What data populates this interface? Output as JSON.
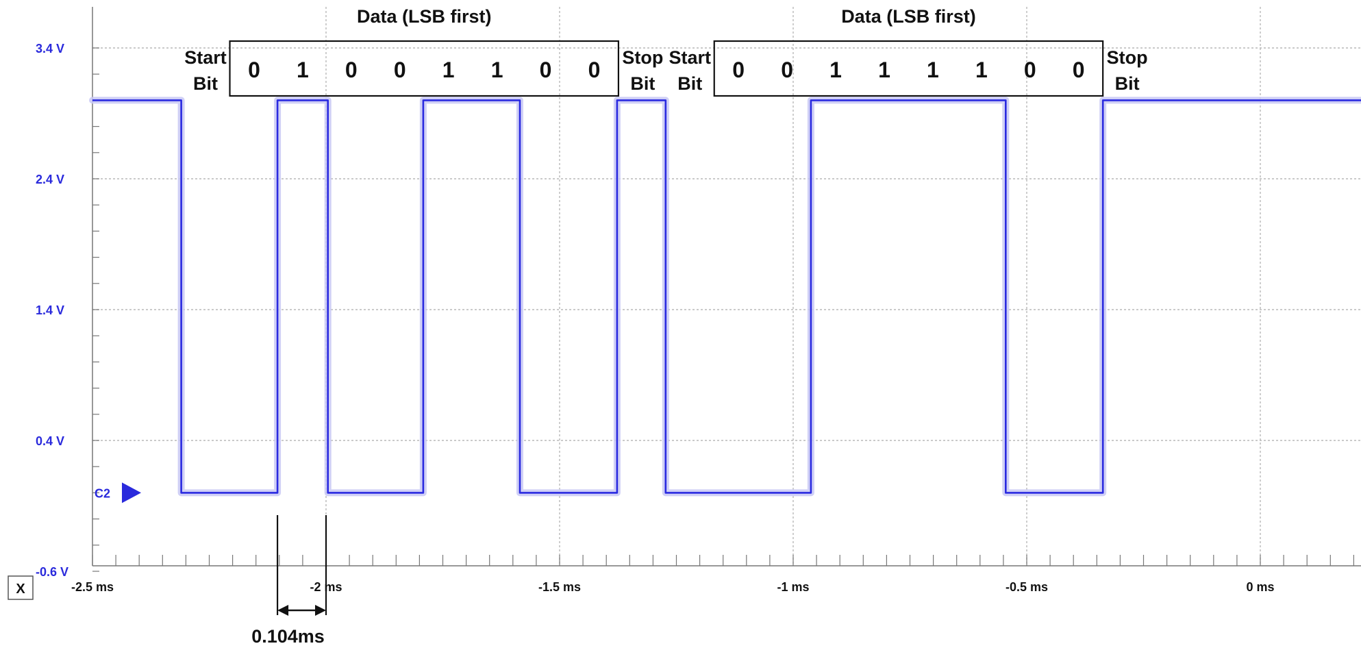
{
  "chart_data": {
    "type": "line",
    "title": "",
    "xlabel": "",
    "ylabel": "",
    "xlim": [
      -2.5,
      0.4
    ],
    "ylim": [
      -0.6,
      3.4
    ],
    "x_ticks": [
      {
        "value": -2.5,
        "label": "-2.5 ms"
      },
      {
        "value": -2.0,
        "label": "-2 ms"
      },
      {
        "value": -1.5,
        "label": "-1.5 ms"
      },
      {
        "value": -1.0,
        "label": "-1 ms"
      },
      {
        "value": -0.5,
        "label": "-0.5 ms"
      },
      {
        "value": 0.0,
        "label": "0 ms"
      }
    ],
    "y_ticks": [
      {
        "value": 3.4,
        "label": "3.4 V"
      },
      {
        "value": 2.4,
        "label": "2.4 V"
      },
      {
        "value": 1.4,
        "label": "1.4 V"
      },
      {
        "value": 0.4,
        "label": "0.4 V"
      },
      {
        "value": -0.6,
        "label": "-0.6 V"
      }
    ],
    "grid": true,
    "series": [
      {
        "name": "C2",
        "color": "#2a2ae0",
        "high": 3.0,
        "low": 0.0,
        "x": [
          -2.5,
          -2.31,
          -2.31,
          -2.104,
          -2.104,
          -1.996,
          -1.996,
          -1.792,
          -1.792,
          -1.585,
          -1.585,
          -1.377,
          -1.377,
          -1.273,
          -1.273,
          -0.962,
          -0.962,
          -0.545,
          -0.545,
          -0.337,
          -0.337,
          0.4
        ],
        "y": [
          3.0,
          3.0,
          0.0,
          0.0,
          3.0,
          3.0,
          0.0,
          0.0,
          3.0,
          3.0,
          0.0,
          0.0,
          3.0,
          3.0,
          0.0,
          0.0,
          3.0,
          3.0,
          0.0,
          0.0,
          3.0,
          3.0
        ]
      }
    ],
    "annotations": {
      "frames": [
        {
          "header": "Data (LSB first)",
          "start_label": [
            "Start",
            "Bit"
          ],
          "stop_label": [
            "Stop",
            "Bit"
          ],
          "bits": [
            "0",
            "1",
            "0",
            "0",
            "1",
            "1",
            "0",
            "0"
          ]
        },
        {
          "header": "Data (LSB first)",
          "start_label": [
            "Start",
            "Bit"
          ],
          "stop_label": [
            "Stop",
            "Bit"
          ],
          "bits": [
            "0",
            "0",
            "1",
            "1",
            "1",
            "1",
            "0",
            "0"
          ]
        }
      ],
      "measurement": {
        "label": "0.104ms",
        "from": -2.104,
        "to": -2.0
      },
      "channel_marker": {
        "label": "C2",
        "level": 0.0
      }
    }
  },
  "ui": {
    "x_button": "X"
  },
  "colors": {
    "trace": "#2a2ae0",
    "trace_glow": "#c8c8f4",
    "axis_label": "#2a2adc",
    "grid": "#b8b8b8"
  }
}
